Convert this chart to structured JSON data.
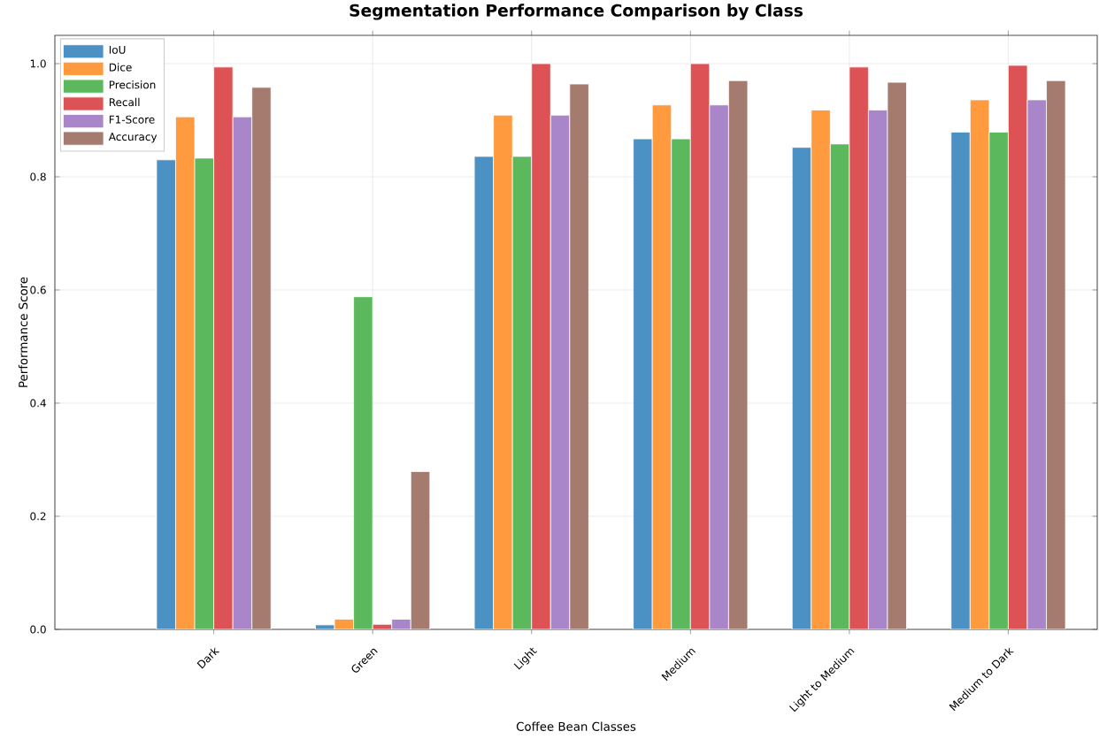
{
  "chart_data": {
    "type": "bar",
    "title": "Segmentation Performance Comparison by Class",
    "xlabel": "Coffee Bean Classes",
    "ylabel": "Performance Score",
    "categories": [
      "Dark",
      "Green",
      "Light",
      "Medium",
      "Light to Medium",
      "Medium to Dark"
    ],
    "series": [
      {
        "name": "IoU",
        "color": "#4c91c4",
        "values": [
          0.83,
          0.008,
          0.836,
          0.867,
          0.852,
          0.879
        ]
      },
      {
        "name": "Dice",
        "color": "#ff9a3e",
        "values": [
          0.906,
          0.018,
          0.909,
          0.927,
          0.918,
          0.936
        ]
      },
      {
        "name": "Precision",
        "color": "#5cb85c",
        "values": [
          0.833,
          0.588,
          0.836,
          0.867,
          0.858,
          0.879
        ]
      },
      {
        "name": "Recall",
        "color": "#dd5255",
        "values": [
          0.994,
          0.009,
          1.0,
          1.0,
          0.994,
          0.997
        ]
      },
      {
        "name": "F1-Score",
        "color": "#a886c9",
        "values": [
          0.906,
          0.018,
          0.909,
          0.927,
          0.918,
          0.936
        ]
      },
      {
        "name": "Accuracy",
        "color": "#a57a6f",
        "values": [
          0.958,
          0.279,
          0.964,
          0.97,
          0.967,
          0.97
        ]
      }
    ],
    "ylim": [
      0,
      1.05
    ],
    "yticks": [
      {
        "value": 0.0,
        "label": "0.0"
      },
      {
        "value": 0.2,
        "label": "0.2"
      },
      {
        "value": 0.4,
        "label": "0.4"
      },
      {
        "value": 0.6,
        "label": "0.6"
      },
      {
        "value": 0.8,
        "label": "0.8"
      },
      {
        "value": 1.0,
        "label": "1.0"
      }
    ],
    "grid": true,
    "legend": "top left"
  }
}
